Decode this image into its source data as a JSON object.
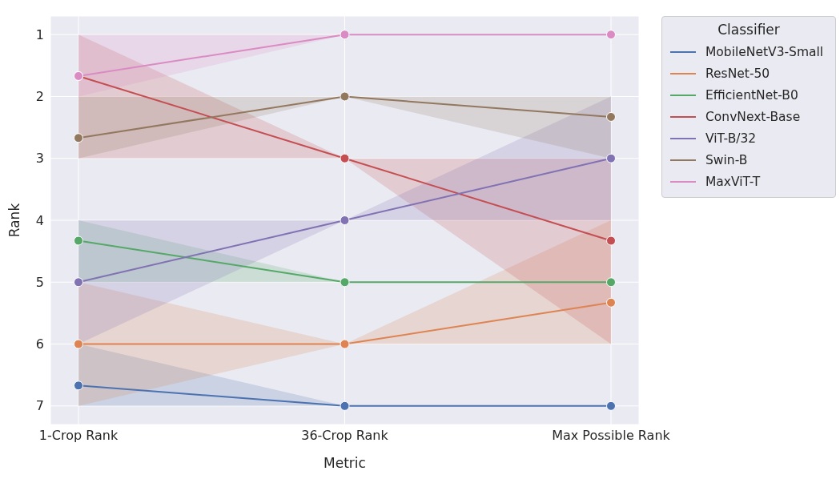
{
  "chart_data": {
    "type": "line",
    "xlabel": "Metric",
    "ylabel": "Rank",
    "legend_title": "Classifier",
    "categories": [
      "1-Crop Rank",
      "36-Crop Rank",
      "Max Possible Rank"
    ],
    "series": [
      {
        "name": "MobileNetV3-Small",
        "color": "#4c72b0",
        "values": [
          6.67,
          7,
          7
        ],
        "lower": [
          6,
          7,
          7
        ],
        "upper": [
          7,
          7,
          7
        ]
      },
      {
        "name": "ResNet-50",
        "color": "#dd8452",
        "values": [
          6,
          6,
          5.33
        ],
        "lower": [
          5,
          6,
          4
        ],
        "upper": [
          7,
          6,
          6
        ]
      },
      {
        "name": "EfficientNet-B0",
        "color": "#55a868",
        "values": [
          4.33,
          5,
          5
        ],
        "lower": [
          4,
          5,
          5
        ],
        "upper": [
          5,
          5,
          5
        ]
      },
      {
        "name": "ConvNext-Base",
        "color": "#c44e52",
        "values": [
          1.67,
          3,
          4.33
        ],
        "lower": [
          1,
          3,
          3
        ],
        "upper": [
          3,
          3,
          6
        ]
      },
      {
        "name": "ViT-B/32",
        "color": "#8172b3",
        "values": [
          5,
          4,
          3
        ],
        "lower": [
          4,
          4,
          2
        ],
        "upper": [
          6,
          4,
          4
        ]
      },
      {
        "name": "Swin-B",
        "color": "#937860",
        "values": [
          2.67,
          2,
          2.33
        ],
        "lower": [
          2,
          2,
          2
        ],
        "upper": [
          3,
          2,
          3
        ]
      },
      {
        "name": "MaxViT-T",
        "color": "#da8bc3",
        "values": [
          1.67,
          1,
          1
        ],
        "lower": [
          1,
          1,
          1
        ],
        "upper": [
          2,
          1,
          1
        ]
      }
    ],
    "ylim": [
      7.3,
      0.7
    ],
    "yticks": [
      1,
      2,
      3,
      4,
      5,
      6,
      7
    ],
    "grid": true,
    "legend": "top right",
    "marker": "circle",
    "line_style": "solid"
  }
}
